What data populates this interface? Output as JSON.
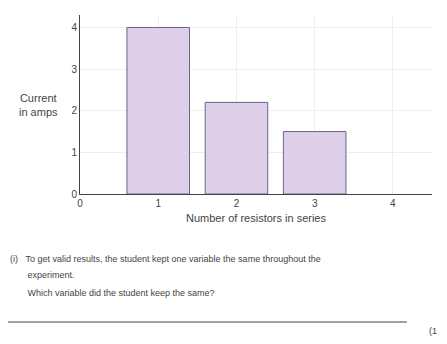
{
  "chart_data": {
    "type": "bar",
    "x": [
      1,
      2,
      3
    ],
    "values": [
      4.0,
      2.2,
      1.5
    ],
    "color": "#ddd0e8",
    "xlabel": "Number of resistors in series",
    "ylabel": "Current\nin amps",
    "xlim": [
      0,
      4.5
    ],
    "ylim": [
      0,
      4.3
    ],
    "xticks": [
      0,
      1,
      2,
      3,
      4
    ],
    "yticks": [
      0,
      1,
      2,
      3,
      4
    ],
    "grid": true,
    "annotations": [
      "(i)   To get valid results, the student kept one variable the same throughout the",
      "       experiment.",
      "       Which variable did the student keep the same?",
      "(1"
    ]
  }
}
